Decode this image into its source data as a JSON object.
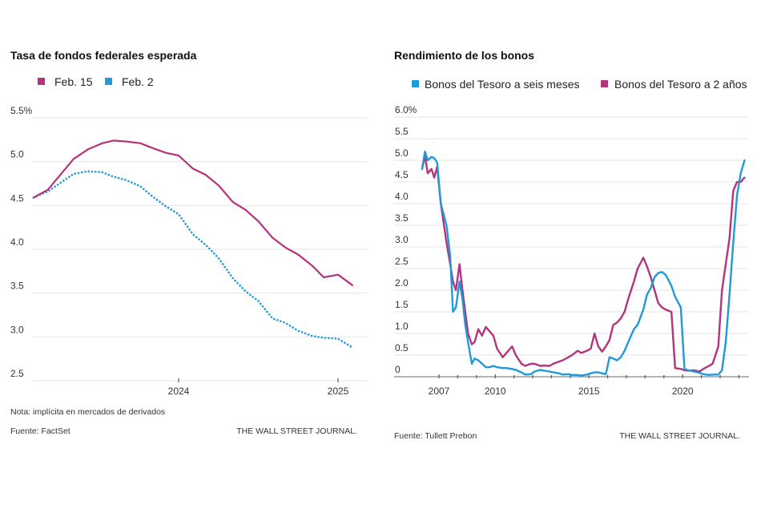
{
  "colors": {
    "magenta": "#b5337c",
    "blue": "#1e9ad6",
    "grid": "#e6e6e6"
  },
  "chart_data": [
    {
      "type": "line",
      "title": "Tasa de fondos federales esperada",
      "xlabel": "",
      "ylabel": "",
      "ylim": [
        2.5,
        5.5
      ],
      "xlim": [
        2023.1,
        2025.1
      ],
      "yticks": [
        5.5,
        5.0,
        4.5,
        4.0,
        3.5,
        3.0,
        2.5
      ],
      "ytick_labels": [
        "5.5%",
        "5.0",
        "4.5",
        "4.0",
        "3.5",
        "3.0",
        "2.5"
      ],
      "xticks": [
        2024,
        2025
      ],
      "xtick_labels": [
        "2024",
        "2025"
      ],
      "grid": true,
      "legend": "top-left",
      "x": [
        2023.09,
        2023.18,
        2023.34,
        2023.43,
        2023.52,
        2023.59,
        2023.67,
        2023.76,
        2023.83,
        2023.92,
        2024.0,
        2024.09,
        2024.17,
        2024.25,
        2024.34,
        2024.42,
        2024.5,
        2024.59,
        2024.67,
        2024.75,
        2024.84,
        2024.91,
        2025.0,
        2025.09
      ],
      "series": [
        {
          "name": "Feb. 15",
          "color": "#b5337c",
          "style": "solid",
          "values": [
            4.59,
            4.68,
            5.03,
            5.14,
            5.21,
            5.24,
            5.23,
            5.21,
            5.16,
            5.1,
            5.07,
            4.92,
            4.85,
            4.73,
            4.54,
            4.45,
            4.32,
            4.13,
            4.02,
            3.94,
            3.81,
            3.68,
            3.71,
            3.59
          ]
        },
        {
          "name": "Feb. 2",
          "color": "#1e9ad6",
          "style": "dotted",
          "values": [
            4.59,
            4.66,
            4.86,
            4.89,
            4.88,
            4.83,
            4.79,
            4.72,
            4.61,
            4.49,
            4.4,
            4.17,
            4.05,
            3.9,
            3.67,
            3.52,
            3.41,
            3.21,
            3.16,
            3.07,
            3.01,
            2.99,
            2.98,
            2.88
          ]
        }
      ],
      "note": "Nota: implícita en mercados de derivados",
      "source": "Fuente: FactSet",
      "credit": "THE WALL STREET JOURNAL."
    },
    {
      "type": "line",
      "title": "Rendimiento de los bonos",
      "xlabel": "",
      "ylabel": "",
      "ylim": [
        0,
        6.0
      ],
      "xlim": [
        2005.9,
        2023.6
      ],
      "yticks": [
        6.0,
        5.5,
        5.0,
        4.5,
        4.0,
        3.5,
        3.0,
        2.5,
        2.0,
        1.5,
        1.0,
        0.5,
        0
      ],
      "ytick_labels": [
        "6.0%",
        "5.5",
        "5.0",
        "4.5",
        "4.0",
        "3.5",
        "3.0",
        "2.5",
        "2.0",
        "1.5",
        "1.0",
        "0.5",
        "0"
      ],
      "xticks": [
        2007,
        2010,
        2015,
        2020
      ],
      "xtick_labels": [
        "2007",
        "2010",
        "2015",
        "2020"
      ],
      "minor_xticks": [
        2008,
        2009,
        2011,
        2012,
        2013,
        2014,
        2016,
        2017,
        2018,
        2019,
        2021,
        2022,
        2023
      ],
      "grid": true,
      "legend": "top",
      "x": [
        2006.1,
        2006.25,
        2006.4,
        2006.6,
        2006.75,
        2006.9,
        2007.1,
        2007.4,
        2007.6,
        2007.75,
        2007.9,
        2008.1,
        2008.25,
        2008.4,
        2008.55,
        2008.75,
        2008.9,
        2009.1,
        2009.3,
        2009.5,
        2009.7,
        2009.9,
        2010.1,
        2010.4,
        2010.6,
        2010.9,
        2011.1,
        2011.4,
        2011.6,
        2011.9,
        2012.1,
        2012.4,
        2012.6,
        2012.9,
        2013.1,
        2013.4,
        2013.6,
        2013.9,
        2014.1,
        2014.4,
        2014.6,
        2014.9,
        2015.1,
        2015.3,
        2015.5,
        2015.7,
        2015.9,
        2016.1,
        2016.3,
        2016.5,
        2016.7,
        2016.9,
        2017.1,
        2017.4,
        2017.6,
        2017.9,
        2018.1,
        2018.3,
        2018.5,
        2018.7,
        2018.9,
        2019.1,
        2019.4,
        2019.6,
        2019.9,
        2020.1,
        2020.3,
        2020.6,
        2020.9,
        2021.1,
        2021.4,
        2021.6,
        2021.9,
        2022.1,
        2022.3,
        2022.5,
        2022.7,
        2022.9,
        2023.1,
        2023.3
      ],
      "series": [
        {
          "name": "Bonos del Tesoro a seis meses",
          "color": "#1e9ad6",
          "values": [
            4.8,
            5.2,
            5.0,
            5.08,
            5.05,
            4.95,
            4.0,
            3.5,
            2.8,
            1.5,
            1.6,
            2.2,
            1.8,
            1.2,
            0.8,
            0.3,
            0.42,
            0.38,
            0.3,
            0.22,
            0.22,
            0.25,
            0.22,
            0.2,
            0.2,
            0.18,
            0.16,
            0.1,
            0.05,
            0.06,
            0.12,
            0.16,
            0.14,
            0.12,
            0.1,
            0.08,
            0.05,
            0.06,
            0.04,
            0.04,
            0.03,
            0.05,
            0.08,
            0.1,
            0.1,
            0.08,
            0.06,
            0.45,
            0.42,
            0.38,
            0.45,
            0.6,
            0.8,
            1.1,
            1.2,
            1.55,
            1.9,
            2.05,
            2.3,
            2.4,
            2.42,
            2.35,
            2.1,
            1.85,
            1.6,
            0.18,
            0.15,
            0.12,
            0.09,
            0.06,
            0.04,
            0.05,
            0.05,
            0.15,
            0.8,
            1.9,
            3.1,
            4.2,
            4.7,
            5.0
          ]
        },
        {
          "name": "Bonos del Tesoro a 2 años",
          "color": "#b5337c",
          "values": [
            4.8,
            5.1,
            4.7,
            4.8,
            4.6,
            4.85,
            4.0,
            3.1,
            2.6,
            2.2,
            2.0,
            2.6,
            2.0,
            1.5,
            1.0,
            0.75,
            0.8,
            1.1,
            0.95,
            1.15,
            1.05,
            0.95,
            0.65,
            0.45,
            0.55,
            0.7,
            0.5,
            0.3,
            0.25,
            0.3,
            0.3,
            0.25,
            0.26,
            0.25,
            0.3,
            0.35,
            0.38,
            0.45,
            0.5,
            0.6,
            0.55,
            0.6,
            0.65,
            1.0,
            0.7,
            0.58,
            0.7,
            0.85,
            1.2,
            1.25,
            1.35,
            1.5,
            1.8,
            2.2,
            2.5,
            2.75,
            2.55,
            2.3,
            2.0,
            1.7,
            1.6,
            1.55,
            1.5,
            0.2,
            0.18,
            0.15,
            0.14,
            0.15,
            0.12,
            0.18,
            0.25,
            0.3,
            0.7,
            2.0,
            2.6,
            3.2,
            4.3,
            4.5,
            4.5,
            4.6
          ]
        }
      ],
      "source": "Fuente: Tullett Prebon",
      "credit": "THE WALL STREET JOURNAL."
    }
  ]
}
